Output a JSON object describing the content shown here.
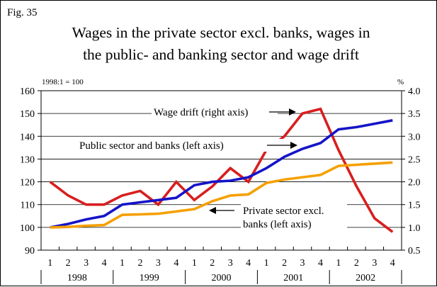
{
  "figure": {
    "label": "Fig. 35",
    "title_line1": "Wages in the private sector excl. banks, wages in",
    "title_line2": "the public- and banking sector and wage drift"
  },
  "chart_data": {
    "type": "line",
    "title": "Wages in the private sector excl. banks, wages in the public- and banking sector and wage drift",
    "left_axis_unit": "1998:1 = 100",
    "right_axis_unit": "%",
    "left_axis": {
      "min": 90,
      "max": 160,
      "step": 10,
      "tick_labels": [
        "90",
        "100",
        "110",
        "120",
        "130",
        "140",
        "150",
        "160"
      ]
    },
    "right_axis": {
      "min": 0.5,
      "max": 4.0,
      "step": 0.5,
      "tick_labels": [
        "0.5",
        "1.0",
        "1.5",
        "2.0",
        "2.5",
        "3.0",
        "3.5",
        "4.0"
      ]
    },
    "quarters": [
      "1",
      "2",
      "3",
      "4",
      "1",
      "2",
      "3",
      "4",
      "1",
      "2",
      "3",
      "4",
      "1",
      "2",
      "3",
      "4",
      "1",
      "2",
      "3",
      "4"
    ],
    "years": [
      "1998",
      "1999",
      "2000",
      "2001",
      "2002"
    ],
    "grid": "horizontal",
    "series": [
      {
        "name": "Wage drift (right axis)",
        "axis": "right",
        "color": "#d81e1e",
        "values": [
          2.0,
          1.7,
          1.5,
          1.5,
          1.7,
          1.8,
          1.5,
          2.0,
          1.6,
          1.9,
          2.3,
          2.0,
          2.7,
          3.0,
          3.5,
          3.6,
          2.7,
          1.9,
          1.2,
          0.9
        ]
      },
      {
        "name": "Public sector and banks (left axis)",
        "axis": "left",
        "color": "#1414c8",
        "values": [
          100,
          101.5,
          103.5,
          105,
          110,
          111,
          112,
          113,
          118.5,
          120,
          120.5,
          122,
          126,
          131,
          134.5,
          137,
          143,
          144,
          145.5,
          147
        ]
      },
      {
        "name": "Private sector excl. banks (left axis)",
        "axis": "left",
        "color": "#f5a000",
        "values": [
          100,
          100.2,
          100.7,
          101,
          105.5,
          105.7,
          106,
          107,
          108,
          111.5,
          114,
          114.5,
          119.5,
          121,
          122,
          123,
          127,
          127.5,
          128,
          128.5
        ]
      }
    ],
    "annotations": [
      {
        "text": "Wage drift (right axis)",
        "series": 0
      },
      {
        "text": "Public sector and banks (left axis)",
        "series": 1
      },
      {
        "text": "Private sector excl.",
        "series": 2
      },
      {
        "text": "banks (left axis)",
        "series": 2
      }
    ]
  }
}
